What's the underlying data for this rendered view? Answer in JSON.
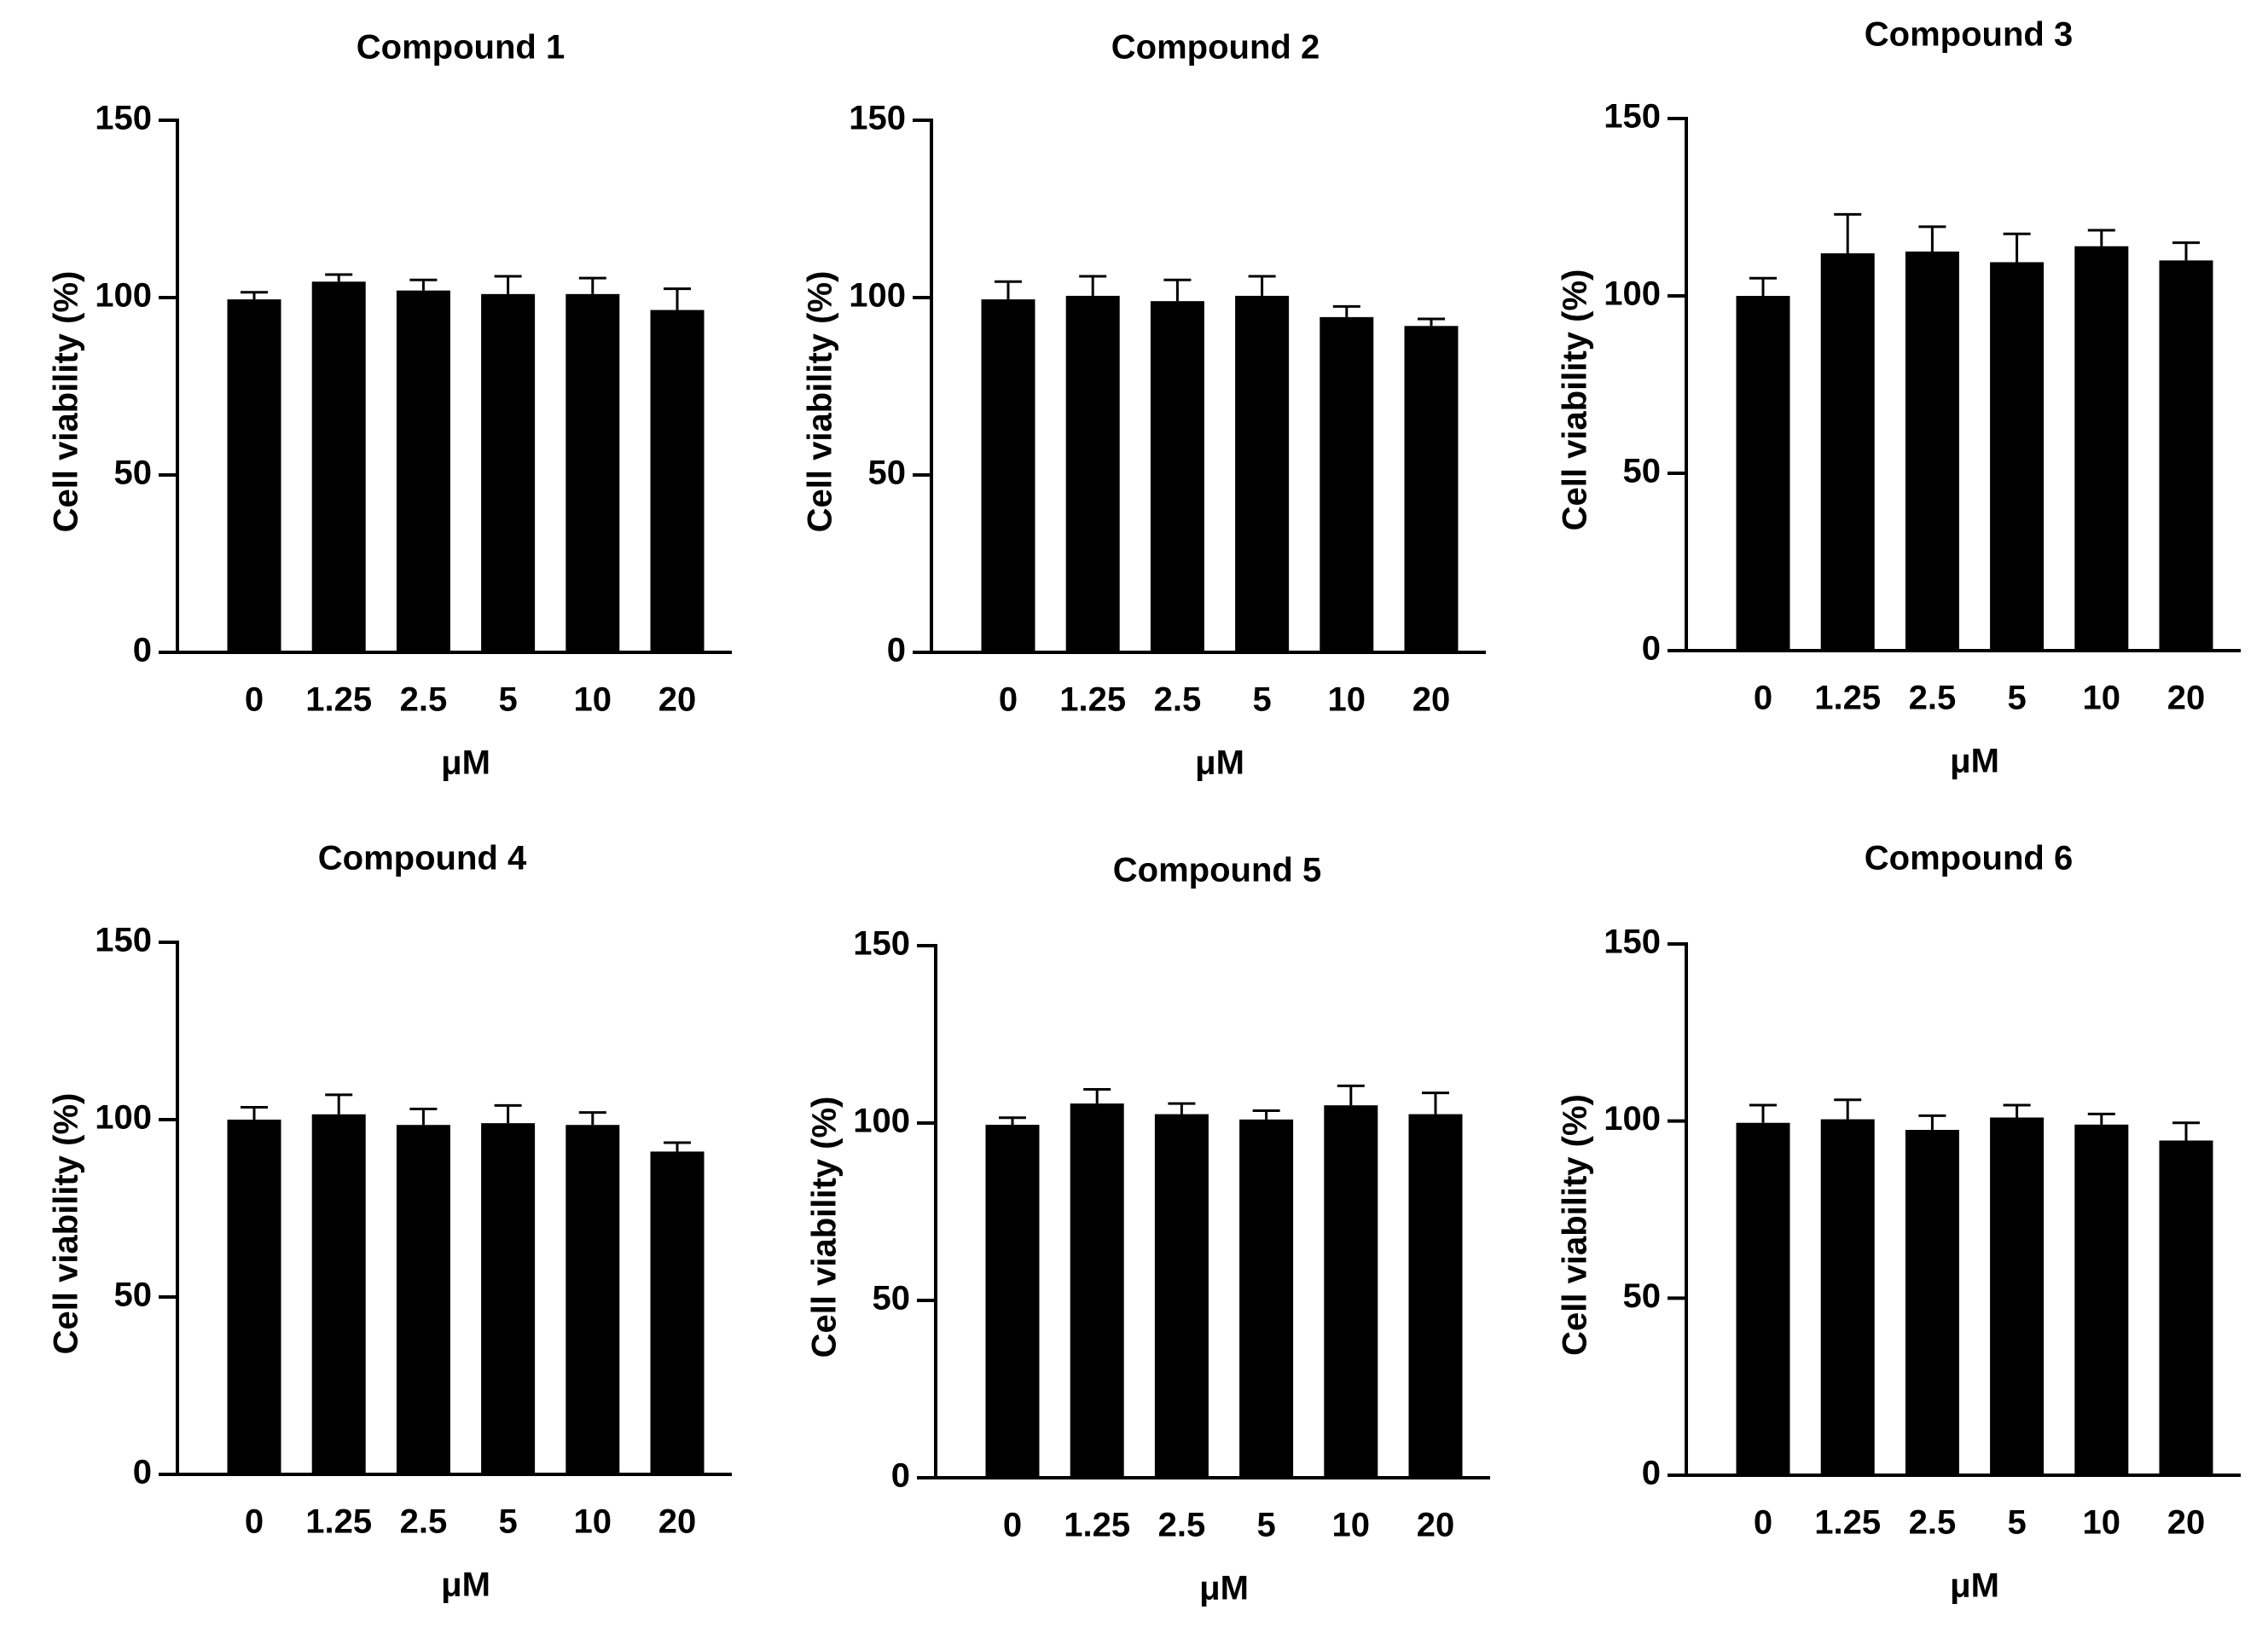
{
  "colors": {
    "bar": "#000000",
    "axis": "#000000",
    "background": "#ffffff"
  },
  "chart_data": [
    {
      "type": "bar",
      "title": "Compound 1",
      "categories": [
        "0",
        "1.25",
        "2.5",
        "5",
        "10",
        "20"
      ],
      "values": [
        99.5,
        104.5,
        102,
        101,
        101,
        96.5
      ],
      "errors": [
        2,
        2,
        3,
        5,
        4.5,
        6
      ],
      "xlabel": "μM",
      "ylabel": "Cell viability (%)",
      "ylim": [
        0,
        150
      ],
      "yticks": [
        "0",
        "50",
        "100",
        "150"
      ],
      "grid": false
    },
    {
      "type": "bar",
      "title": "Compound 2",
      "categories": [
        "0",
        "1.25",
        "2.5",
        "5",
        "10",
        "20"
      ],
      "values": [
        99.5,
        100.5,
        99,
        100.5,
        94.5,
        92
      ],
      "errors": [
        5,
        5.5,
        6,
        5.5,
        3,
        2
      ],
      "xlabel": "μM",
      "ylabel": "Cell viability (%)",
      "ylim": [
        0,
        150
      ],
      "yticks": [
        "0",
        "50",
        "100",
        "150"
      ],
      "grid": false
    },
    {
      "type": "bar",
      "title": "Compound 3",
      "categories": [
        "0",
        "1.25",
        "2.5",
        "5",
        "10",
        "20"
      ],
      "values": [
        100,
        112,
        112.5,
        109.5,
        114,
        110
      ],
      "errors": [
        5,
        11,
        7,
        8,
        4.5,
        5
      ],
      "xlabel": "μM",
      "ylabel": "Cell viability (%)",
      "ylim": [
        0,
        150
      ],
      "yticks": [
        "0",
        "50",
        "100",
        "150"
      ],
      "grid": false
    },
    {
      "type": "bar",
      "title": "Compound 4",
      "categories": [
        "0",
        "1.25",
        "2.5",
        "5",
        "10",
        "20"
      ],
      "values": [
        100,
        101.5,
        98.5,
        99,
        98.5,
        91
      ],
      "errors": [
        3.5,
        5.5,
        4.5,
        5,
        3.5,
        2.5
      ],
      "xlabel": "μM",
      "ylabel": "Cell viability (%)",
      "ylim": [
        0,
        150
      ],
      "yticks": [
        "0",
        "50",
        "100",
        "150"
      ],
      "grid": false
    },
    {
      "type": "bar",
      "title": "Compound 5",
      "categories": [
        "0",
        "1.25",
        "2.5",
        "5",
        "10",
        "20"
      ],
      "values": [
        99.5,
        105.5,
        102.5,
        101,
        105,
        102.5
      ],
      "errors": [
        2,
        4,
        3,
        2.5,
        5.5,
        6
      ],
      "xlabel": "μM",
      "ylabel": "Cell viability (%)",
      "ylim": [
        0,
        150
      ],
      "yticks": [
        "0",
        "50",
        "100",
        "150"
      ],
      "grid": false
    },
    {
      "type": "bar",
      "title": "Compound 6",
      "categories": [
        "0",
        "1.25",
        "2.5",
        "5",
        "10",
        "20"
      ],
      "values": [
        99.5,
        100.5,
        97.5,
        101,
        99,
        94.5
      ],
      "errors": [
        5,
        5.5,
        4,
        3.5,
        3,
        5
      ],
      "xlabel": "μM",
      "ylabel": "Cell viability (%)",
      "ylim": [
        0,
        150
      ],
      "yticks": [
        "0",
        "50",
        "100",
        "150"
      ],
      "grid": false
    }
  ]
}
